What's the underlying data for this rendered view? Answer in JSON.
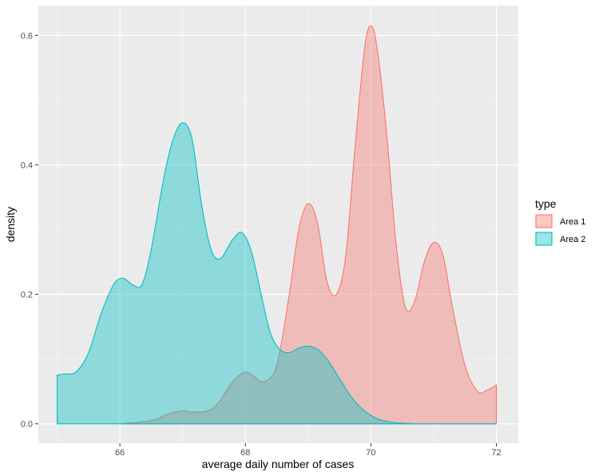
{
  "chart_data": {
    "type": "area",
    "title": "",
    "xlabel": "average daily number of cases",
    "ylabel": "density",
    "xlim": [
      64.7,
      72.35
    ],
    "ylim": [
      -0.03,
      0.646
    ],
    "x_ticks": [
      66,
      68,
      70,
      72
    ],
    "x_tick_labels": [
      "66",
      "68",
      "70",
      "72"
    ],
    "y_ticks": [
      0.0,
      0.2,
      0.4,
      0.6
    ],
    "y_tick_labels": [
      "0.0",
      "0.2",
      "0.4",
      "0.6"
    ],
    "grid": true,
    "legend": {
      "title": "type",
      "position": "right"
    },
    "series": [
      {
        "name": "Area 1",
        "fill": "#F8766D",
        "stroke": "#F8766D",
        "x": [
          66.0,
          66.5,
          66.8,
          67.0,
          67.2,
          67.5,
          67.8,
          68.0,
          68.15,
          68.3,
          68.5,
          68.7,
          68.85,
          69.0,
          69.15,
          69.3,
          69.45,
          69.6,
          69.75,
          69.9,
          70.0,
          70.1,
          70.25,
          70.4,
          70.55,
          70.7,
          70.85,
          71.0,
          71.15,
          71.3,
          71.5,
          71.7,
          71.85,
          72.0
        ],
        "y": [
          0.0,
          0.005,
          0.016,
          0.02,
          0.018,
          0.025,
          0.065,
          0.08,
          0.072,
          0.065,
          0.09,
          0.2,
          0.3,
          0.34,
          0.31,
          0.22,
          0.2,
          0.26,
          0.43,
          0.58,
          0.615,
          0.58,
          0.45,
          0.28,
          0.18,
          0.19,
          0.25,
          0.28,
          0.26,
          0.18,
          0.09,
          0.05,
          0.052,
          0.06
        ]
      },
      {
        "name": "Area 2",
        "fill": "#00BFC4",
        "stroke": "#00BFC4",
        "x": [
          65.0,
          65.1,
          65.3,
          65.5,
          65.7,
          65.9,
          66.05,
          66.2,
          66.35,
          66.5,
          66.7,
          66.85,
          67.0,
          67.15,
          67.3,
          67.45,
          67.6,
          67.8,
          67.95,
          68.1,
          68.25,
          68.4,
          68.55,
          68.7,
          68.85,
          69.0,
          69.15,
          69.3,
          69.5,
          69.7,
          69.9,
          70.1,
          70.3,
          70.5,
          70.8,
          71.0,
          72.0
        ],
        "y": [
          0.075,
          0.077,
          0.08,
          0.11,
          0.17,
          0.215,
          0.225,
          0.215,
          0.215,
          0.27,
          0.38,
          0.44,
          0.465,
          0.44,
          0.34,
          0.27,
          0.255,
          0.285,
          0.295,
          0.265,
          0.2,
          0.14,
          0.115,
          0.11,
          0.117,
          0.12,
          0.115,
          0.1,
          0.07,
          0.04,
          0.02,
          0.008,
          0.003,
          0.001,
          0.0,
          0.0,
          0.0
        ]
      }
    ]
  }
}
